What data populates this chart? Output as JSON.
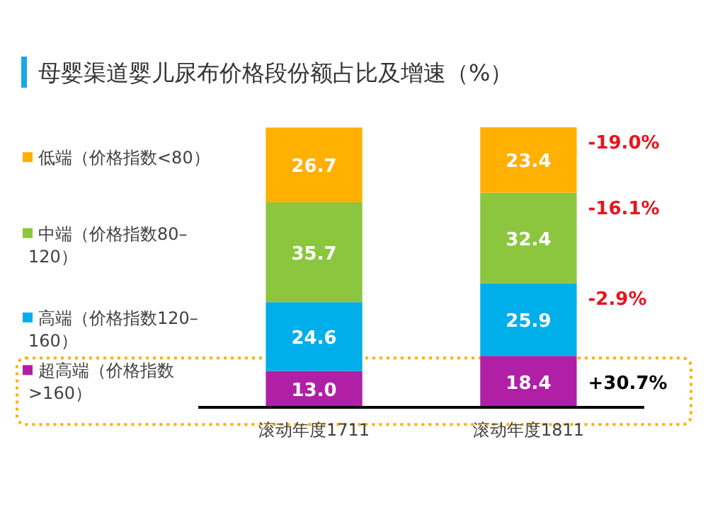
{
  "chart_data": {
    "type": "bar",
    "title": "母婴渠道婴儿尿布价格段份额占比及增速（%）",
    "categories": [
      "滚动年度1711",
      "滚动年度1811"
    ],
    "stacked": true,
    "legend": "left",
    "series": [
      {
        "name": "超高端（价格指数>160）",
        "color": "#b01fa6",
        "values": [
          13.0,
          18.4
        ],
        "value_labels": [
          "13.0",
          "18.4"
        ]
      },
      {
        "name": "高端（价格指数120–160）",
        "color": "#00aeea",
        "values": [
          24.6,
          25.9
        ],
        "value_labels": [
          "24.6",
          "25.9"
        ]
      },
      {
        "name": "中端（价格指数80–120）",
        "color": "#8cc63f",
        "values": [
          35.7,
          32.4
        ],
        "value_labels": [
          "35.7",
          "32.4"
        ]
      },
      {
        "name": "低端（价格指数<80）",
        "color": "#ffb000",
        "values": [
          26.7,
          23.4
        ],
        "value_labels": [
          "26.7",
          "23.4"
        ]
      }
    ],
    "annotations": [
      "-19.0%",
      "-16.1%",
      "-2.9%",
      "+30.7%"
    ]
  }
}
